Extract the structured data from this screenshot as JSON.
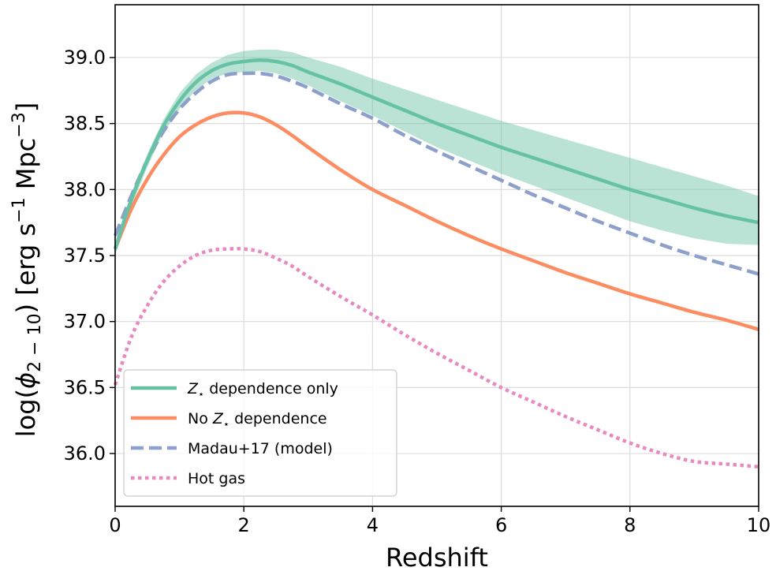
{
  "chart_data": {
    "type": "line",
    "xlabel": "Redshift",
    "ylabel_parts": {
      "prefix": "log(",
      "phi": "ϕ",
      "phi_sub": "2 − 10",
      "close": ")",
      "units_a": " [erg s",
      "sup1": "−1",
      "units_b": " Mpc",
      "sup2": "−3",
      "units_c": "]"
    },
    "xlim": [
      0,
      10
    ],
    "ylim": [
      35.6,
      39.4
    ],
    "xticks": [
      0,
      2,
      4,
      6,
      8,
      10
    ],
    "xtick_labels": [
      "0",
      "2",
      "4",
      "6",
      "8",
      "10"
    ],
    "yticks": [
      36.0,
      36.5,
      37.0,
      37.5,
      38.0,
      38.5,
      39.0
    ],
    "ytick_labels": [
      "36.0",
      "36.5",
      "37.0",
      "37.5",
      "38.0",
      "38.5",
      "39.0"
    ],
    "grid": true,
    "legend_position": "lower-left",
    "x": [
      0,
      0.25,
      0.5,
      0.75,
      1.0,
      1.25,
      1.5,
      1.75,
      2.0,
      2.25,
      2.5,
      2.75,
      3.0,
      3.5,
      4.0,
      4.5,
      5.0,
      5.5,
      6.0,
      6.5,
      7.0,
      7.5,
      8.0,
      8.5,
      9.0,
      9.5,
      10.0
    ],
    "series": [
      {
        "name": "dependence only",
        "name_prefix": "Z",
        "name_sub": "⋆",
        "style": "solid",
        "color": "#66c2a5",
        "values": [
          37.55,
          37.92,
          38.22,
          38.48,
          38.67,
          38.81,
          38.9,
          38.95,
          38.97,
          38.98,
          38.97,
          38.94,
          38.89,
          38.8,
          38.7,
          38.6,
          38.5,
          38.41,
          38.32,
          38.24,
          38.16,
          38.08,
          38.0,
          37.93,
          37.86,
          37.8,
          37.75
        ],
        "band_upper": [
          37.6,
          37.97,
          38.27,
          38.53,
          38.73,
          38.87,
          38.96,
          39.02,
          39.05,
          39.06,
          39.06,
          39.04,
          39.0,
          38.93,
          38.84,
          38.76,
          38.68,
          38.6,
          38.52,
          38.45,
          38.38,
          38.31,
          38.24,
          38.17,
          38.1,
          38.03,
          37.95
        ],
        "band_lower": [
          37.5,
          37.87,
          38.17,
          38.43,
          38.61,
          38.75,
          38.84,
          38.88,
          38.89,
          38.9,
          38.88,
          38.84,
          38.79,
          38.67,
          38.56,
          38.44,
          38.32,
          38.22,
          38.12,
          38.03,
          37.94,
          37.85,
          37.76,
          37.69,
          37.63,
          37.59,
          37.58
        ]
      },
      {
        "name": "No",
        "name_mid": "Z",
        "name_sub": "⋆",
        "name_suffix": "dependence",
        "style": "solid",
        "color": "#fc8d62",
        "values": [
          37.55,
          37.85,
          38.08,
          38.26,
          38.4,
          38.49,
          38.55,
          38.58,
          38.58,
          38.55,
          38.49,
          38.41,
          38.32,
          38.15,
          38.0,
          37.88,
          37.76,
          37.65,
          37.55,
          37.46,
          37.37,
          37.29,
          37.21,
          37.14,
          37.07,
          37.01,
          36.94
        ]
      },
      {
        "name": "Madau+17 (model)",
        "style": "dashed",
        "color": "#8da0cb",
        "values": [
          37.65,
          37.95,
          38.22,
          38.44,
          38.61,
          38.73,
          38.82,
          38.87,
          38.88,
          38.88,
          38.86,
          38.82,
          38.77,
          38.65,
          38.54,
          38.41,
          38.29,
          38.18,
          38.07,
          37.96,
          37.86,
          37.76,
          37.67,
          37.58,
          37.5,
          37.43,
          37.36
        ]
      },
      {
        "name": "Hot gas",
        "style": "dotted",
        "color": "#e78ac3",
        "values": [
          36.52,
          36.88,
          37.12,
          37.3,
          37.42,
          37.5,
          37.54,
          37.55,
          37.55,
          37.53,
          37.48,
          37.42,
          37.34,
          37.19,
          37.05,
          36.9,
          36.76,
          36.63,
          36.5,
          36.39,
          36.28,
          36.18,
          36.08,
          36.0,
          35.94,
          35.92,
          35.9
        ]
      }
    ]
  }
}
